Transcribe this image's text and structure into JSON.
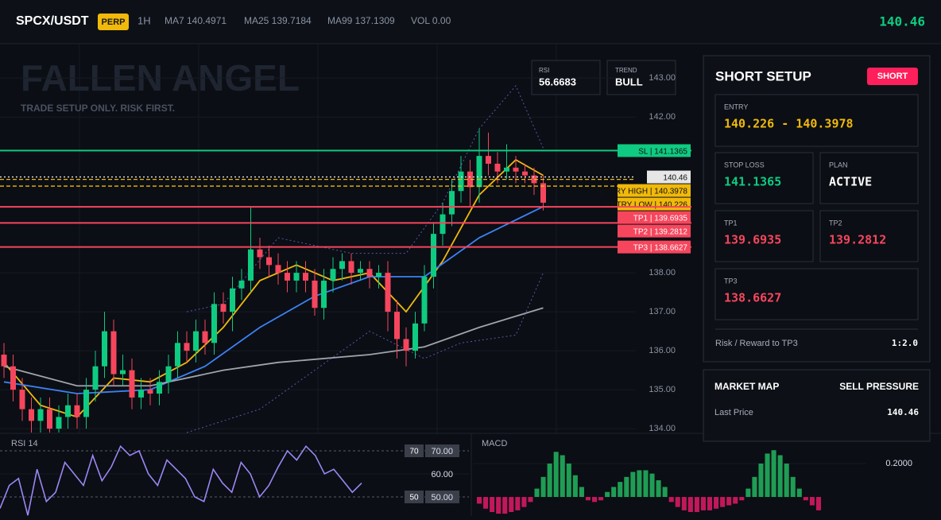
{
  "header": {
    "symbol": "SPCX/USDT",
    "badge": "PERP",
    "interval": "1H",
    "ma7": "MA7 140.4971",
    "ma25": "MA25 139.7184",
    "ma99": "MA99 137.1309",
    "volume": "VOL 0.00",
    "price": "140.46"
  },
  "watermark": {
    "title": "FALLEN ANGEL",
    "subtitle": "TRADE SETUP ONLY. RISK FIRST."
  },
  "indicators": {
    "rsi_label": "RSI",
    "rsi_value": "56.6683",
    "trend_label": "TREND",
    "trend_value": "BULL"
  },
  "chart_data": [
    {
      "type": "candlestick",
      "up_color": "#0ecb81",
      "down_color": "#f6465d",
      "candles": [
        [
          135.9,
          136.2,
          135.3,
          135.6
        ],
        [
          135.6,
          135.9,
          134.7,
          135.0
        ],
        [
          135.0,
          135.3,
          134.2,
          134.5
        ],
        [
          134.5,
          134.8,
          133.9,
          134.2
        ],
        [
          134.2,
          134.8,
          133.9,
          134.5
        ],
        [
          134.5,
          134.8,
          133.9,
          134.0
        ],
        [
          134.0,
          134.6,
          133.9,
          134.3
        ],
        [
          134.3,
          134.9,
          134.0,
          134.6
        ],
        [
          134.6,
          134.9,
          134.0,
          134.3
        ],
        [
          134.3,
          135.3,
          134.0,
          135.0
        ],
        [
          135.0,
          136.0,
          134.7,
          135.6
        ],
        [
          135.6,
          137.0,
          135.3,
          136.5
        ],
        [
          136.5,
          136.8,
          135.1,
          135.4
        ],
        [
          135.4,
          135.9,
          135.1,
          135.5
        ],
        [
          135.5,
          135.8,
          134.5,
          134.8
        ],
        [
          134.8,
          135.3,
          134.5,
          135.0
        ],
        [
          135.0,
          135.3,
          134.6,
          134.9
        ],
        [
          134.9,
          135.5,
          134.6,
          135.2
        ],
        [
          135.2,
          135.9,
          134.9,
          135.6
        ],
        [
          135.6,
          136.5,
          135.3,
          136.2
        ],
        [
          136.2,
          136.5,
          135.7,
          136.0
        ],
        [
          136.0,
          136.8,
          135.7,
          136.5
        ],
        [
          136.5,
          136.8,
          135.9,
          136.2
        ],
        [
          136.2,
          137.5,
          135.9,
          137.2
        ],
        [
          137.2,
          137.5,
          136.7,
          137.0
        ],
        [
          137.0,
          137.9,
          136.5,
          137.6
        ],
        [
          137.6,
          138.1,
          137.3,
          137.8
        ],
        [
          137.8,
          139.7,
          137.5,
          138.6
        ],
        [
          138.6,
          138.9,
          138.1,
          138.4
        ],
        [
          138.4,
          138.7,
          137.9,
          138.2
        ],
        [
          138.2,
          138.5,
          137.7,
          138.0
        ],
        [
          138.0,
          138.3,
          137.5,
          137.8
        ],
        [
          137.8,
          138.3,
          137.5,
          138.0
        ],
        [
          138.0,
          138.3,
          137.5,
          137.8
        ],
        [
          137.8,
          138.1,
          136.9,
          137.1
        ],
        [
          137.1,
          138.1,
          136.8,
          137.8
        ],
        [
          137.8,
          138.4,
          137.5,
          138.1
        ],
        [
          138.1,
          138.5,
          137.8,
          138.3
        ],
        [
          138.3,
          138.5,
          137.7,
          138.0
        ],
        [
          138.0,
          138.3,
          137.8,
          138.1
        ],
        [
          138.1,
          138.3,
          137.6,
          137.9
        ],
        [
          137.9,
          138.2,
          137.6,
          138.0
        ],
        [
          138.0,
          138.3,
          136.5,
          137.0
        ],
        [
          137.0,
          137.3,
          135.8,
          136.3
        ],
        [
          136.3,
          136.6,
          135.6,
          136.0
        ],
        [
          136.0,
          137.0,
          135.8,
          136.7
        ],
        [
          136.7,
          138.2,
          136.5,
          137.9
        ],
        [
          137.9,
          139.3,
          137.6,
          139.0
        ],
        [
          139.0,
          139.8,
          138.7,
          139.5
        ],
        [
          139.5,
          140.4,
          139.2,
          140.1
        ],
        [
          140.1,
          141.0,
          139.8,
          140.6
        ],
        [
          140.6,
          140.9,
          139.7,
          140.2
        ],
        [
          140.2,
          141.7,
          139.8,
          141.0
        ],
        [
          141.0,
          141.6,
          140.5,
          140.8
        ],
        [
          140.8,
          141.1,
          140.3,
          140.6
        ],
        [
          140.6,
          141.3,
          140.4,
          140.7
        ],
        [
          140.7,
          141.0,
          140.3,
          140.6
        ],
        [
          140.6,
          140.8,
          140.3,
          140.5
        ],
        [
          140.5,
          140.7,
          140.0,
          140.3
        ],
        [
          140.3,
          140.5,
          139.6,
          139.8
        ]
      ],
      "overlays": [
        {
          "color": "#f0b90b",
          "style": "solid",
          "x": [
            0,
            4,
            8,
            12,
            16,
            20,
            24,
            28,
            32,
            36,
            40,
            44,
            48,
            52,
            56,
            59
          ],
          "values": [
            135.7,
            134.6,
            134.3,
            135.3,
            135.2,
            135.7,
            136.6,
            137.8,
            138.2,
            137.8,
            138.0,
            137.0,
            138.3,
            140.0,
            140.9,
            140.5
          ]
        },
        {
          "color": "#3b82f6",
          "style": "solid",
          "x": [
            0,
            8,
            16,
            22,
            28,
            34,
            40,
            46,
            52,
            59
          ],
          "values": [
            135.2,
            134.9,
            135.0,
            135.6,
            136.6,
            137.4,
            137.9,
            137.9,
            138.9,
            139.7
          ]
        },
        {
          "color": "#a0a4ab",
          "style": "solid",
          "x": [
            0,
            8,
            16,
            24,
            30,
            40,
            46,
            52,
            59
          ],
          "values": [
            135.6,
            135.1,
            135.1,
            135.5,
            135.7,
            135.9,
            136.1,
            136.6,
            137.1
          ]
        },
        {
          "color": "#5a57a8",
          "style": "dotted",
          "x": [
            20,
            24,
            30,
            38,
            44,
            48,
            52,
            56,
            59
          ],
          "values": [
            137.0,
            137.2,
            138.9,
            138.5,
            138.5,
            139.8,
            141.7,
            142.8,
            141.2
          ]
        },
        {
          "color": "#5a57a8",
          "style": "dotted",
          "x": [
            20,
            28,
            34,
            40,
            46,
            50,
            56,
            59
          ],
          "values": [
            133.9,
            134.5,
            135.5,
            136.5,
            135.8,
            136.2,
            136.4,
            138.0
          ]
        }
      ],
      "levels": [
        {
          "label": "SL",
          "value": 141.1365,
          "color": "#0ecb81",
          "style": "solid"
        },
        {
          "value": 140.46,
          "color": "#e6e6e6",
          "style": "dotted"
        },
        {
          "label": "ENTRY HIGH",
          "value": 140.3978,
          "color": "#f0b90b",
          "style": "dashed"
        },
        {
          "label": "ENTRY LOW",
          "value": 140.226,
          "color": "#f0b90b",
          "style": "dashed"
        },
        {
          "label": "TP1",
          "value": 139.6935,
          "color": "#f6465d",
          "style": "solid"
        },
        {
          "label": "TP2",
          "value": 139.2812,
          "color": "#f6465d",
          "style": "solid"
        },
        {
          "label": "TP3",
          "value": 138.6627,
          "color": "#f6465d",
          "style": "solid"
        }
      ],
      "ylim": [
        133.88,
        143.88
      ],
      "yticks": [
        {
          "value": 134,
          "label": "134.00"
        },
        {
          "value": 135,
          "label": "135.00"
        },
        {
          "value": 136,
          "label": "136.00"
        },
        {
          "value": 137,
          "label": "137.00"
        },
        {
          "value": 138,
          "label": "138.00"
        },
        {
          "value": 142,
          "label": "142.00"
        },
        {
          "value": 143,
          "label": "143.00"
        }
      ]
    },
    {
      "type": "line",
      "title": "RSI 14",
      "color": "#9b87f5",
      "values": [
        45,
        55,
        58,
        42,
        62,
        48,
        52,
        65,
        60,
        55,
        68,
        57,
        63,
        72,
        68,
        70,
        60,
        55,
        66,
        62,
        58,
        50,
        48,
        62,
        56,
        52,
        65,
        60,
        50,
        55,
        63,
        70,
        66,
        72,
        68,
        60,
        62,
        57,
        52,
        56
      ],
      "ylim": [
        41.7,
        77.6
      ],
      "levels": [
        70,
        50
      ],
      "yticks": [
        {
          "value": 70,
          "label": "70.00"
        },
        {
          "value": 60,
          "label": "60.00"
        },
        {
          "value": 50,
          "label": "50.00"
        }
      ]
    },
    {
      "type": "bar",
      "title": "MACD",
      "positive_color": "#1f9d55",
      "negative_color": "#c2185b",
      "values": [
        -0.04,
        -0.07,
        -0.09,
        -0.1,
        -0.1,
        -0.09,
        -0.08,
        -0.06,
        -0.03,
        0.05,
        0.12,
        0.2,
        0.27,
        0.25,
        0.2,
        0.13,
        0.06,
        -0.02,
        -0.03,
        -0.02,
        0.03,
        0.06,
        0.09,
        0.12,
        0.15,
        0.16,
        0.16,
        0.14,
        0.1,
        0.06,
        -0.03,
        -0.06,
        -0.08,
        -0.09,
        -0.09,
        -0.08,
        -0.08,
        -0.07,
        -0.06,
        -0.05,
        -0.04,
        -0.02,
        0.05,
        0.12,
        0.2,
        0.26,
        0.28,
        0.25,
        0.2,
        0.12,
        0.05,
        -0.02,
        -0.05,
        -0.08
      ],
      "ylim": [
        -0.114,
        0.381
      ],
      "yticks": [
        {
          "value": 0.2,
          "label": "0.2000"
        }
      ]
    }
  ],
  "setup": {
    "title": "SHORT SETUP",
    "badge": "SHORT",
    "entry_label": "ENTRY",
    "entry": "140.226 - 140.3978",
    "stop_label": "STOP LOSS",
    "stop": "141.1365",
    "plan_label": "PLAN",
    "plan": "ACTIVE",
    "tp1_label": "TP1",
    "tp1": "139.6935",
    "tp2_label": "TP2",
    "tp2": "139.2812",
    "tp3_label": "TP3",
    "tp3": "138.6627",
    "rr_label": "Risk / Reward to TP3",
    "rr": "1:2.0"
  },
  "market": {
    "title": "MARKET MAP",
    "status": "SELL PRESSURE",
    "last_label": "Last Price",
    "last": "140.46"
  }
}
